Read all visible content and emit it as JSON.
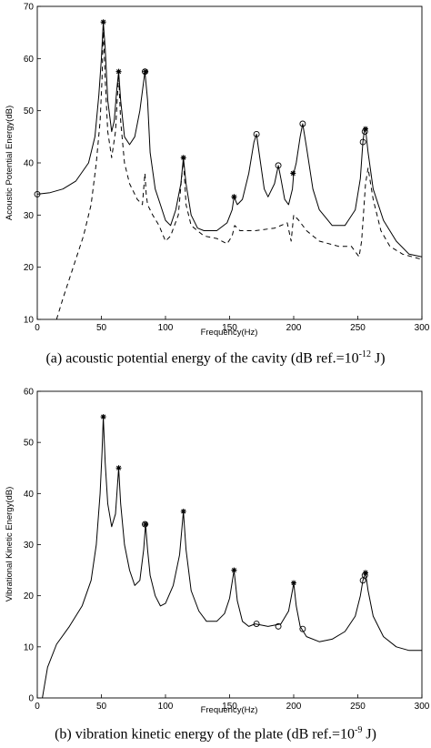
{
  "chart_data": [
    {
      "type": "line",
      "caption": {
        "prefix": "(a) acoustic potential energy of the cavity (dB ref.=10",
        "exponent": "-12",
        "suffix": " J)"
      },
      "xlabel": "Frequency(Hz)",
      "ylabel": "Acoustic Potential Energy(dB)",
      "xlim": [
        0,
        300
      ],
      "ylim": [
        10,
        70
      ],
      "xticks": [
        0,
        50,
        100,
        150,
        200,
        250,
        300
      ],
      "yticks": [
        10,
        20,
        30,
        40,
        50,
        60,
        70
      ],
      "grid": false,
      "series": [
        {
          "style": "solid",
          "points": [
            [
              0,
              34
            ],
            [
              10,
              34.3
            ],
            [
              20,
              35
            ],
            [
              30,
              36.5
            ],
            [
              40,
              40
            ],
            [
              45,
              45
            ],
            [
              48,
              53
            ],
            [
              50,
              60
            ],
            [
              51.5,
              67
            ],
            [
              53,
              62
            ],
            [
              55,
              52
            ],
            [
              58,
              46
            ],
            [
              60,
              48
            ],
            [
              62,
              54
            ],
            [
              63.5,
              57.5
            ],
            [
              65,
              52
            ],
            [
              68,
              45
            ],
            [
              72,
              43.5
            ],
            [
              76,
              45
            ],
            [
              80,
              50
            ],
            [
              84,
              57.5
            ],
            [
              86,
              52
            ],
            [
              88,
              42
            ],
            [
              92,
              35
            ],
            [
              96,
              32
            ],
            [
              100,
              29
            ],
            [
              104,
              28
            ],
            [
              108,
              31
            ],
            [
              112,
              36
            ],
            [
              114,
              41
            ],
            [
              116,
              36
            ],
            [
              120,
              30
            ],
            [
              125,
              27.5
            ],
            [
              130,
              27
            ],
            [
              140,
              27
            ],
            [
              148,
              28.5
            ],
            [
              152,
              31
            ],
            [
              153.5,
              33.5
            ],
            [
              156,
              32
            ],
            [
              160,
              33
            ],
            [
              165,
              38
            ],
            [
              169,
              44
            ],
            [
              171,
              45.5
            ],
            [
              173,
              42
            ],
            [
              177,
              35
            ],
            [
              180,
              33.5
            ],
            [
              185,
              36
            ],
            [
              188,
              39.5
            ],
            [
              190,
              37
            ],
            [
              193,
              33
            ],
            [
              196,
              32
            ],
            [
              199,
              35
            ],
            [
              200,
              38
            ],
            [
              202,
              40
            ],
            [
              205,
              45
            ],
            [
              207,
              47.5
            ],
            [
              210,
              43
            ],
            [
              215,
              35
            ],
            [
              220,
              31
            ],
            [
              225,
              29.5
            ],
            [
              230,
              28
            ],
            [
              240,
              28
            ],
            [
              248,
              31
            ],
            [
              252,
              37
            ],
            [
              254,
              44
            ],
            [
              255,
              46
            ],
            [
              256,
              46.5
            ],
            [
              258,
              42
            ],
            [
              262,
              35
            ],
            [
              270,
              29
            ],
            [
              280,
              25
            ],
            [
              290,
              22.5
            ],
            [
              300,
              22
            ]
          ]
        },
        {
          "style": "dashed",
          "points": [
            [
              15,
              10
            ],
            [
              20,
              14
            ],
            [
              28,
              20
            ],
            [
              36,
              26
            ],
            [
              42,
              32
            ],
            [
              46,
              40
            ],
            [
              49,
              48
            ],
            [
              50.5,
              56
            ],
            [
              51.5,
              66
            ],
            [
              53,
              56
            ],
            [
              55,
              46
            ],
            [
              58,
              41
            ],
            [
              61,
              46
            ],
            [
              63.5,
              57
            ],
            [
              65,
              48
            ],
            [
              68,
              40
            ],
            [
              72,
              36
            ],
            [
              78,
              33
            ],
            [
              82,
              32
            ],
            [
              84,
              38
            ],
            [
              85,
              34
            ],
            [
              86,
              32
            ],
            [
              90,
              30
            ],
            [
              95,
              28
            ],
            [
              100,
              25
            ],
            [
              104,
              26
            ],
            [
              110,
              30
            ],
            [
              114,
              41
            ],
            [
              116,
              32
            ],
            [
              120,
              28
            ],
            [
              130,
              26
            ],
            [
              140,
              25.5
            ],
            [
              148,
              24.5
            ],
            [
              152,
              26
            ],
            [
              154,
              28
            ],
            [
              158,
              27
            ],
            [
              170,
              27
            ],
            [
              185,
              27.5
            ],
            [
              195,
              28.5
            ],
            [
              198,
              25
            ],
            [
              200,
              30
            ],
            [
              204,
              29
            ],
            [
              210,
              27
            ],
            [
              220,
              25
            ],
            [
              235,
              24
            ],
            [
              245,
              24
            ],
            [
              251,
              22
            ],
            [
              253,
              25
            ],
            [
              256,
              36
            ],
            [
              258,
              39
            ],
            [
              262,
              33
            ],
            [
              268,
              27
            ],
            [
              275,
              24
            ],
            [
              285,
              22.5
            ],
            [
              300,
              21.5
            ]
          ]
        }
      ],
      "markers": {
        "star": [
          [
            51.5,
            67
          ],
          [
            63.5,
            57.5
          ],
          [
            84.5,
            57.5
          ],
          [
            114,
            41
          ],
          [
            153.5,
            33.5
          ],
          [
            199.5,
            38
          ],
          [
            256,
            46.5
          ]
        ],
        "circle": [
          [
            0,
            34
          ],
          [
            84,
            57.5
          ],
          [
            171,
            45.5
          ],
          [
            188,
            39.5
          ],
          [
            207,
            47.5
          ],
          [
            254,
            44
          ],
          [
            255.5,
            46
          ]
        ]
      }
    },
    {
      "type": "line",
      "caption": {
        "prefix": "(b) vibration kinetic energy of the plate (dB ref.=10",
        "exponent": "-9",
        "suffix": " J)"
      },
      "xlabel": "Frequency(Hz)",
      "ylabel": "Vibrational Kinetic Energy(dB)",
      "xlim": [
        0,
        300
      ],
      "ylim": [
        0,
        60
      ],
      "xticks": [
        0,
        50,
        100,
        150,
        200,
        250,
        300
      ],
      "yticks": [
        0,
        10,
        20,
        30,
        40,
        50,
        60
      ],
      "grid": false,
      "series": [
        {
          "style": "solid",
          "points": [
            [
              4,
              0
            ],
            [
              8,
              6
            ],
            [
              15,
              10.5
            ],
            [
              25,
              14
            ],
            [
              35,
              18
            ],
            [
              42,
              23
            ],
            [
              46,
              30
            ],
            [
              49,
              40
            ],
            [
              50.5,
              48
            ],
            [
              51.5,
              55
            ],
            [
              53,
              46
            ],
            [
              55,
              38
            ],
            [
              58,
              33.5
            ],
            [
              61,
              36
            ],
            [
              63.5,
              45
            ],
            [
              65,
              38
            ],
            [
              68,
              30
            ],
            [
              72,
              25
            ],
            [
              76,
              22
            ],
            [
              80,
              23
            ],
            [
              83,
              29
            ],
            [
              84.5,
              34
            ],
            [
              86,
              29
            ],
            [
              88,
              24
            ],
            [
              92,
              20
            ],
            [
              96,
              18
            ],
            [
              100,
              18.5
            ],
            [
              106,
              22
            ],
            [
              111,
              28
            ],
            [
              114,
              36.5
            ],
            [
              116,
              29
            ],
            [
              120,
              21
            ],
            [
              126,
              17
            ],
            [
              132,
              15
            ],
            [
              140,
              15
            ],
            [
              146,
              16.5
            ],
            [
              150,
              19.5
            ],
            [
              153.5,
              25
            ],
            [
              156,
              19
            ],
            [
              160,
              15
            ],
            [
              165,
              14
            ],
            [
              170,
              14.5
            ],
            [
              180,
              14
            ],
            [
              190,
              14.5
            ],
            [
              196,
              17
            ],
            [
              199,
              21
            ],
            [
              200,
              22.5
            ],
            [
              202,
              18
            ],
            [
              205,
              14
            ],
            [
              210,
              12
            ],
            [
              220,
              11
            ],
            [
              230,
              11.5
            ],
            [
              240,
              13
            ],
            [
              248,
              16
            ],
            [
              252,
              20
            ],
            [
              254,
              23
            ],
            [
              256,
              24.5
            ],
            [
              258,
              21
            ],
            [
              262,
              16
            ],
            [
              270,
              12
            ],
            [
              280,
              10
            ],
            [
              290,
              9.3
            ],
            [
              300,
              9.3
            ]
          ]
        }
      ],
      "markers": {
        "star": [
          [
            51.5,
            55
          ],
          [
            63.5,
            45
          ],
          [
            84.5,
            34
          ],
          [
            114,
            36.5
          ],
          [
            153.5,
            25
          ],
          [
            200,
            22.5
          ],
          [
            256,
            24.5
          ]
        ],
        "circle": [
          [
            84,
            34
          ],
          [
            171,
            14.5
          ],
          [
            188,
            14
          ],
          [
            207,
            13.5
          ],
          [
            254,
            23
          ],
          [
            255.5,
            24
          ]
        ]
      }
    }
  ]
}
